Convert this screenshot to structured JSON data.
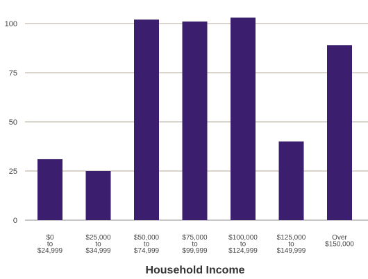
{
  "chart_data": {
    "type": "bar",
    "title": "",
    "xlabel": "Household Income",
    "ylabel": "",
    "categories": [
      [
        "$0",
        "to",
        "$24,999"
      ],
      [
        "$25,000",
        "to",
        "$34,999"
      ],
      [
        "$50,000",
        "to",
        "$74,999"
      ],
      [
        "$75,000",
        "to",
        "$99,999"
      ],
      [
        "$100,000",
        "to",
        "$124,999"
      ],
      [
        "$125,000",
        "to",
        "$149,999"
      ],
      [
        "Over",
        "$150,000"
      ]
    ],
    "values": [
      31,
      25,
      102,
      101,
      103,
      40,
      89
    ],
    "ylim": [
      0,
      110
    ],
    "yticks": [
      0,
      25,
      50,
      75,
      100
    ],
    "grid": true,
    "legend": "none",
    "colors": {
      "bar": "#3b1f6e",
      "grid": "#b3aa9a",
      "axis": "#8c8c8c",
      "tick_text": "#444444",
      "xlabel_text": "#333333"
    }
  }
}
